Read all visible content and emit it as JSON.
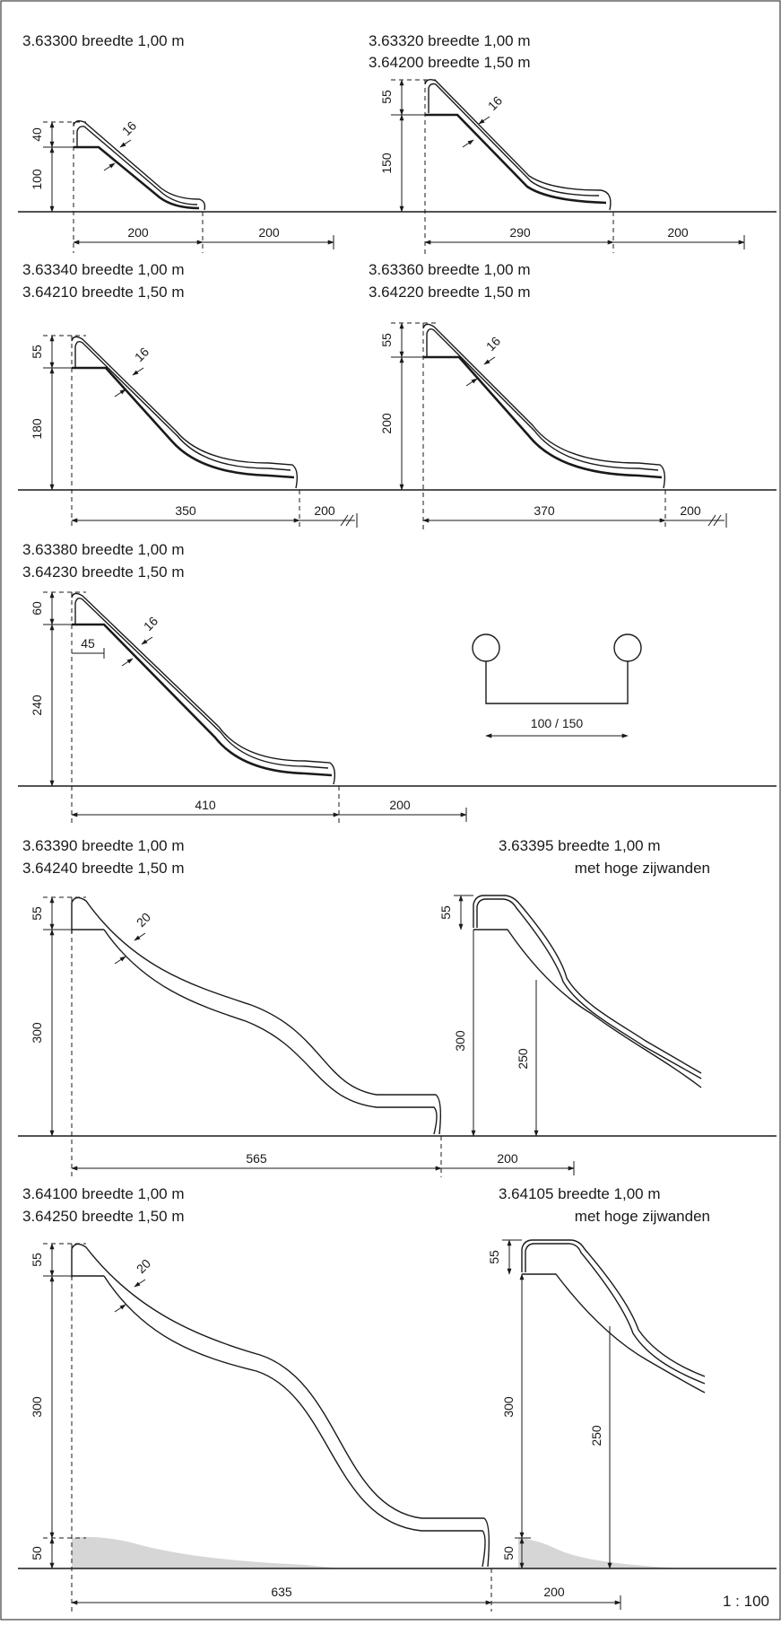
{
  "scale": "1 : 100",
  "slides": [
    {
      "id": "s1",
      "lines": [
        "3.63300 breedte 1,00 m"
      ],
      "top": "40",
      "height": "100",
      "wall": "16",
      "length": "200",
      "clearance": "200"
    },
    {
      "id": "s2",
      "lines": [
        "3.63320 breedte 1,00 m",
        "3.64200 breedte 1,50 m"
      ],
      "top": "55",
      "height": "150",
      "wall": "16",
      "length": "290",
      "clearance": "200"
    },
    {
      "id": "s3",
      "lines": [
        "3.63340 breedte 1,00 m",
        "3.64210 breedte 1,50 m"
      ],
      "top": "55",
      "height": "180",
      "wall": "16",
      "length": "350",
      "clearance": "200"
    },
    {
      "id": "s4",
      "lines": [
        "3.63360 breedte 1,00 m",
        "3.64220 breedte 1,50 m"
      ],
      "top": "55",
      "height": "200",
      "wall": "16",
      "length": "370",
      "clearance": "200"
    },
    {
      "id": "s5",
      "lines": [
        "3.63380 breedte 1,00 m",
        "3.64230 breedte 1,50 m"
      ],
      "top": "60",
      "height": "240",
      "wall": "16",
      "platform": "45",
      "length": "410",
      "clearance": "200"
    },
    {
      "id": "s6",
      "lines": [
        "3.63390 breedte 1,00 m",
        "3.64240 breedte 1,50 m"
      ],
      "top": "55",
      "height": "300",
      "wall": "20",
      "length": "565",
      "clearance": "200"
    },
    {
      "id": "s7",
      "lines": [
        "3.63395 breedte 1,00 m",
        "met hoge zijwanden"
      ],
      "top": "55",
      "height": "300",
      "side": "250"
    },
    {
      "id": "s8",
      "lines": [
        "3.64100 breedte 1,00 m",
        "3.64250 breedte 1,50 m"
      ],
      "top": "55",
      "height": "300",
      "base": "50",
      "wall": "20",
      "length": "635",
      "clearance": "200"
    },
    {
      "id": "s9",
      "lines": [
        "3.64105 breedte 1,00 m",
        "met hoge zijwanden"
      ],
      "top": "55",
      "height": "300",
      "base": "50",
      "side": "250"
    }
  ],
  "cross_section": {
    "width": "100 / 150"
  }
}
